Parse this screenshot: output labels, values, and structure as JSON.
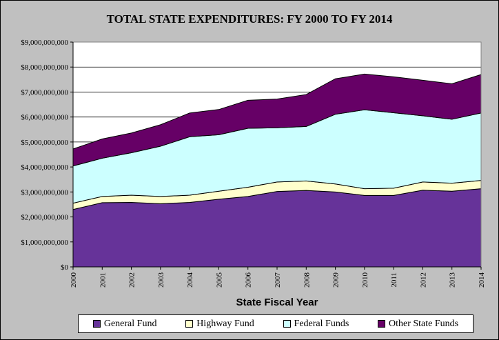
{
  "chart_data": {
    "type": "area",
    "stacked": true,
    "title": "TOTAL STATE  EXPENDITURES:  FY 2000 TO FY 2014",
    "xlabel": "State Fiscal Year",
    "ylabel": "",
    "x": [
      "2000",
      "2001",
      "2002",
      "2003",
      "2004",
      "2005",
      "2006",
      "2007",
      "2008",
      "2009",
      "2010",
      "2011",
      "2012",
      "2013",
      "2014"
    ],
    "ylim": [
      0,
      9000000000
    ],
    "yticks": [
      0,
      1000000000,
      2000000000,
      3000000000,
      4000000000,
      5000000000,
      6000000000,
      7000000000,
      8000000000,
      9000000000
    ],
    "ytick_labels": [
      "$0",
      "$1,000,000,000",
      "$2,000,000,000",
      "$3,000,000,000",
      "$4,000,000,000",
      "$5,000,000,000",
      "$6,000,000,000",
      "$7,000,000,000",
      "$8,000,000,000",
      "$9,000,000,000"
    ],
    "grid": true,
    "legend_position": "bottom",
    "series": [
      {
        "name": "General Fund",
        "color": "#663399",
        "values": [
          2300000000,
          2570000000,
          2580000000,
          2530000000,
          2580000000,
          2710000000,
          2820000000,
          3020000000,
          3060000000,
          3000000000,
          2860000000,
          2860000000,
          3070000000,
          3030000000,
          3130000000
        ]
      },
      {
        "name": "Highway Fund",
        "color": "#ffffcc",
        "values": [
          250000000,
          250000000,
          290000000,
          290000000,
          290000000,
          320000000,
          370000000,
          380000000,
          380000000,
          320000000,
          270000000,
          290000000,
          330000000,
          320000000,
          330000000
        ]
      },
      {
        "name": "Federal Funds",
        "color": "#ccffff",
        "values": [
          1490000000,
          1530000000,
          1700000000,
          2010000000,
          2340000000,
          2260000000,
          2360000000,
          2170000000,
          2180000000,
          2790000000,
          3160000000,
          3020000000,
          2650000000,
          2560000000,
          2700000000
        ]
      },
      {
        "name": "Other State Funds",
        "color": "#660066",
        "values": [
          680000000,
          770000000,
          790000000,
          860000000,
          950000000,
          1010000000,
          1120000000,
          1150000000,
          1280000000,
          1420000000,
          1430000000,
          1440000000,
          1420000000,
          1420000000,
          1540000000
        ]
      }
    ]
  }
}
